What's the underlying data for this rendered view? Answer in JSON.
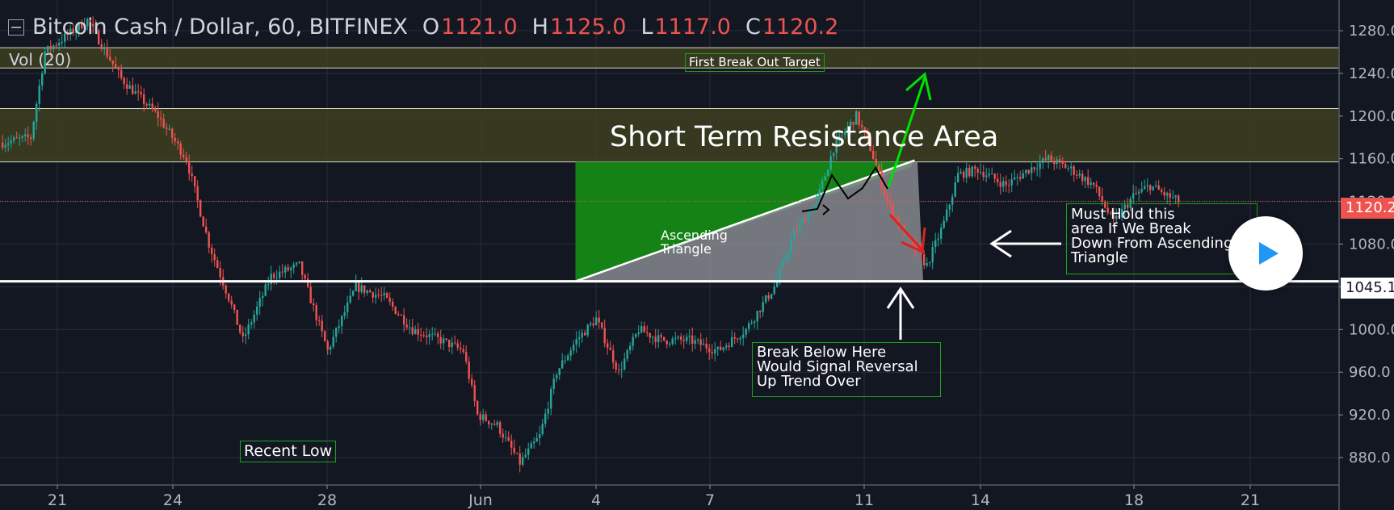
{
  "header": {
    "symbol": "Bitcoin Cash / Dollar, 60, BITFINEX",
    "open_label": "O",
    "open_value": "1121.0",
    "high_label": "H",
    "high_value": "1125.0",
    "low_label": "L",
    "low_value": "1117.0",
    "close_label": "C",
    "close_value": "1120.2",
    "volume_label": "Vol (20)"
  },
  "price_axis": {
    "current_price_label": "1120.2",
    "support_price_label": "1045.1"
  },
  "annotations": {
    "first_target": "First Break Out Target",
    "resistance": "Short Term Resistance Area",
    "triangle": [
      "Ascending",
      "Triangle"
    ],
    "must_hold": [
      "Must Hold this",
      "area If We Break",
      "Down From Ascending",
      "Triangle"
    ],
    "break_below": [
      "Break Below Here",
      "Would Signal Reversal",
      "Up Trend Over"
    ],
    "recent_low": "Recent Low"
  },
  "colors": {
    "background": "#131722",
    "up_candle": "#26a69a",
    "down_candle": "#ef5350",
    "resistance_zone": "#3d3f20",
    "triangle_fill": "#158215",
    "box_border": "#1ba31b",
    "breakout_arrow": "#00e000",
    "breakdown_arrow": "#e02020"
  },
  "chart_data": {
    "type": "candlestick",
    "title": "Bitcoin Cash / Dollar, 60, BITFINEX",
    "x_ticks": [
      "21",
      "24",
      "28",
      "Jun",
      "4",
      "7",
      "11",
      "14",
      "18",
      "21"
    ],
    "y_ticks": [
      880.0,
      920.0,
      960.0,
      1000.0,
      1040.0,
      1080.0,
      1120.0,
      1160.0,
      1200.0,
      1240.0,
      1280.0
    ],
    "y_range": [
      860,
      1310
    ],
    "last_ohlc": {
      "open": 1121.0,
      "high": 1125.0,
      "low": 1117.0,
      "close": 1120.2
    },
    "current_price": 1120.2,
    "support_level": 1045.1,
    "resistance_zones": [
      {
        "low": 1157,
        "high": 1207
      },
      {
        "low": 1245,
        "high": 1264
      }
    ],
    "price_path": [
      {
        "x": 0,
        "price": 1175
      },
      {
        "x": 1,
        "price": 1180
      },
      {
        "x": 1.5,
        "price": 1260
      },
      {
        "x": 3,
        "price": 1290
      },
      {
        "x": 4.2,
        "price": 1235
      },
      {
        "x": 5.5,
        "price": 1200
      },
      {
        "x": 6.5,
        "price": 1160
      },
      {
        "x": 7.3,
        "price": 1080
      },
      {
        "x": 8,
        "price": 1030
      },
      {
        "x": 8.5,
        "price": 990
      },
      {
        "x": 9.5,
        "price": 1050
      },
      {
        "x": 10.5,
        "price": 1060
      },
      {
        "x": 11.5,
        "price": 980
      },
      {
        "x": 12.5,
        "price": 1040
      },
      {
        "x": 13.5,
        "price": 1030
      },
      {
        "x": 14.5,
        "price": 1000
      },
      {
        "x": 15.5,
        "price": 990
      },
      {
        "x": 16.3,
        "price": 980
      },
      {
        "x": 16.8,
        "price": 920
      },
      {
        "x": 17.5,
        "price": 910
      },
      {
        "x": 18.3,
        "price": 875
      },
      {
        "x": 19,
        "price": 900
      },
      {
        "x": 19.6,
        "price": 960
      },
      {
        "x": 20.3,
        "price": 990
      },
      {
        "x": 21,
        "price": 1010
      },
      {
        "x": 21.8,
        "price": 960
      },
      {
        "x": 22.5,
        "price": 1000
      },
      {
        "x": 23.3,
        "price": 990
      },
      {
        "x": 24.3,
        "price": 990
      },
      {
        "x": 25.3,
        "price": 980
      },
      {
        "x": 26.3,
        "price": 1000
      },
      {
        "x": 27.3,
        "price": 1040
      },
      {
        "x": 28,
        "price": 1090
      },
      {
        "x": 28.8,
        "price": 1120
      },
      {
        "x": 29.4,
        "price": 1170
      },
      {
        "x": 30.2,
        "price": 1200
      },
      {
        "x": 30.7,
        "price": 1170
      },
      {
        "x": 31.3,
        "price": 1120
      },
      {
        "x": 32,
        "price": 1085
      },
      {
        "x": 32.7,
        "price": 1060
      },
      {
        "x": 33.3,
        "price": 1100
      },
      {
        "x": 33.8,
        "price": 1145
      },
      {
        "x": 34.5,
        "price": 1150
      },
      {
        "x": 35.5,
        "price": 1135
      },
      {
        "x": 36.3,
        "price": 1150
      },
      {
        "x": 37,
        "price": 1160
      },
      {
        "x": 37.8,
        "price": 1150
      },
      {
        "x": 38.6,
        "price": 1135
      },
      {
        "x": 39.3,
        "price": 1100
      },
      {
        "x": 40,
        "price": 1125
      },
      {
        "x": 40.6,
        "price": 1135
      },
      {
        "x": 41.2,
        "price": 1125
      },
      {
        "x": 41.6,
        "price": 1120
      }
    ]
  }
}
